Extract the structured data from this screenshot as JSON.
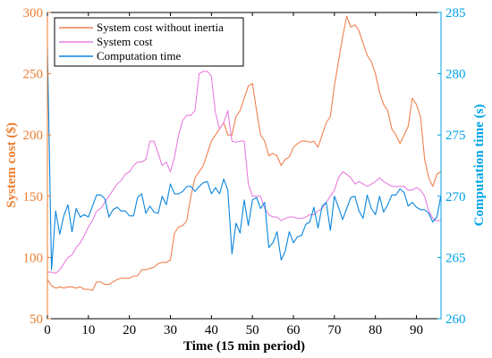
{
  "chart_data": {
    "type": "line",
    "xlabel": "Time (15 min period)",
    "ylabel_left": "System cost ($)",
    "ylabel_right": "Computation time (s)",
    "xlim": [
      0,
      96
    ],
    "ylim_left": [
      50,
      300
    ],
    "ylim_right": [
      260,
      285
    ],
    "x_ticks": [
      0,
      10,
      20,
      30,
      40,
      50,
      60,
      70,
      80,
      90
    ],
    "y_left_ticks": [
      50,
      100,
      150,
      200,
      250,
      300
    ],
    "y_right_ticks": [
      260,
      265,
      270,
      275,
      280,
      285
    ],
    "grid": false,
    "legend_position": "top-left",
    "colors": {
      "left_axis": "#ED7D31",
      "right_axis": "#00A2E8",
      "frame": "#000000"
    },
    "series": [
      {
        "name": "System cost without inertia",
        "axis": "left",
        "color": "#F08050",
        "x": [
          0,
          1,
          2,
          3,
          4,
          5,
          6,
          7,
          8,
          9,
          10,
          11,
          12,
          13,
          14,
          15,
          16,
          17,
          18,
          19,
          20,
          21,
          22,
          23,
          24,
          25,
          26,
          27,
          28,
          29,
          30,
          31,
          32,
          33,
          34,
          35,
          36,
          37,
          38,
          39,
          40,
          41,
          42,
          43,
          44,
          45,
          46,
          47,
          48,
          49,
          50,
          51,
          52,
          53,
          54,
          55,
          56,
          57,
          58,
          59,
          60,
          61,
          62,
          63,
          64,
          65,
          66,
          67,
          68,
          69,
          70,
          71,
          72,
          73,
          74,
          75,
          76,
          77,
          78,
          79,
          80,
          81,
          82,
          83,
          84,
          85,
          86,
          87,
          88,
          89,
          90,
          91,
          92,
          93,
          94,
          95,
          96
        ],
        "values": [
          82,
          77,
          75,
          76,
          75,
          76,
          76,
          75,
          76,
          74,
          74,
          73,
          80,
          80,
          78,
          78,
          80,
          82,
          83,
          83,
          83,
          85,
          85,
          90,
          90,
          91,
          92,
          95,
          96,
          96,
          98,
          120,
          125,
          126,
          130,
          150,
          165,
          170,
          175,
          185,
          195,
          200,
          205,
          210,
          200,
          200,
          215,
          220,
          230,
          240,
          242,
          220,
          200,
          195,
          183,
          185,
          183,
          175,
          180,
          182,
          190,
          193,
          195,
          195,
          194,
          195,
          190,
          200,
          210,
          215,
          240,
          260,
          280,
          297,
          288,
          290,
          285,
          275,
          265,
          260,
          250,
          235,
          225,
          220,
          205,
          200,
          193,
          200,
          207,
          230,
          225,
          215,
          180,
          165,
          158,
          168,
          170
        ]
      },
      {
        "name": "System cost",
        "axis": "left",
        "color": "#E87EE0",
        "x": [
          0,
          1,
          2,
          3,
          4,
          5,
          6,
          7,
          8,
          9,
          10,
          11,
          12,
          13,
          14,
          15,
          16,
          17,
          18,
          19,
          20,
          21,
          22,
          23,
          24,
          25,
          26,
          27,
          28,
          29,
          30,
          31,
          32,
          33,
          34,
          35,
          36,
          37,
          38,
          39,
          40,
          41,
          42,
          43,
          44,
          45,
          46,
          47,
          48,
          49,
          50,
          51,
          52,
          53,
          54,
          55,
          56,
          57,
          58,
          59,
          60,
          61,
          62,
          63,
          64,
          65,
          66,
          67,
          68,
          69,
          70,
          71,
          72,
          73,
          74,
          75,
          76,
          77,
          78,
          79,
          80,
          81,
          82,
          83,
          84,
          85,
          86,
          87,
          88,
          89,
          90,
          91,
          92,
          93,
          94,
          95,
          96
        ],
        "values": [
          88,
          88,
          87,
          90,
          95,
          100,
          102,
          108,
          112,
          118,
          125,
          130,
          138,
          140,
          145,
          150,
          155,
          160,
          163,
          168,
          170,
          175,
          178,
          178,
          180,
          195,
          195,
          185,
          175,
          178,
          170,
          182,
          200,
          212,
          216,
          216,
          220,
          250,
          252,
          252,
          248,
          218,
          205,
          210,
          220,
          195,
          194,
          195,
          195,
          160,
          150,
          150,
          150,
          140,
          135,
          133,
          133,
          130,
          132,
          133,
          133,
          132,
          132,
          133,
          135,
          135,
          138,
          140,
          145,
          150,
          155,
          165,
          170,
          168,
          165,
          160,
          162,
          160,
          158,
          160,
          162,
          165,
          162,
          160,
          158,
          158,
          158,
          158,
          155,
          155,
          157,
          155,
          150,
          138,
          132,
          130,
          130
        ]
      },
      {
        "name": "Computation time",
        "axis": "right",
        "color": "#0A86DD",
        "x": [
          0,
          1,
          2,
          3,
          4,
          5,
          6,
          7,
          8,
          9,
          10,
          11,
          12,
          13,
          14,
          15,
          16,
          17,
          18,
          19,
          20,
          21,
          22,
          23,
          24,
          25,
          26,
          27,
          28,
          29,
          30,
          31,
          32,
          33,
          34,
          35,
          36,
          37,
          38,
          39,
          40,
          41,
          42,
          43,
          44,
          45,
          46,
          47,
          48,
          49,
          50,
          51,
          52,
          53,
          54,
          55,
          56,
          57,
          58,
          59,
          60,
          61,
          62,
          63,
          64,
          65,
          66,
          67,
          68,
          69,
          70,
          71,
          72,
          73,
          74,
          75,
          76,
          77,
          78,
          79,
          80,
          81,
          82,
          83,
          84,
          85,
          86,
          87,
          88,
          89,
          90,
          91,
          92,
          93,
          94,
          95,
          96
        ],
        "values": [
          282.2,
          264.0,
          268.8,
          266.9,
          268.4,
          269.3,
          267.1,
          269.0,
          268.3,
          268.5,
          268.3,
          269.2,
          270.1,
          270.1,
          269.8,
          268.3,
          268.9,
          269.1,
          268.8,
          268.8,
          268.4,
          268.4,
          269.9,
          270.2,
          268.6,
          269.2,
          268.7,
          268.6,
          270.0,
          269.3,
          271.0,
          270.2,
          270.2,
          270.4,
          270.8,
          270.8,
          270.4,
          270.8,
          271.1,
          271.2,
          270.2,
          270.7,
          270.2,
          271.4,
          270.5,
          265.3,
          267.8,
          267.0,
          269.7,
          267.6,
          269.7,
          269.9,
          269.0,
          269.5,
          265.8,
          266.2,
          267.1,
          264.8,
          265.5,
          267.1,
          266.2,
          266.7,
          266.8,
          267.7,
          267.9,
          269.1,
          267.4,
          269.2,
          269.5,
          267.2,
          270.0,
          269.1,
          268.1,
          269.0,
          269.9,
          270.0,
          268.8,
          268.2,
          270.1,
          269.0,
          268.5,
          270.0,
          268.7,
          269.3,
          270.1,
          270.1,
          270.6,
          270.3,
          269.2,
          269.5,
          269.1,
          268.9,
          268.9,
          268.6,
          267.9,
          268.3,
          270.1
        ]
      }
    ]
  }
}
